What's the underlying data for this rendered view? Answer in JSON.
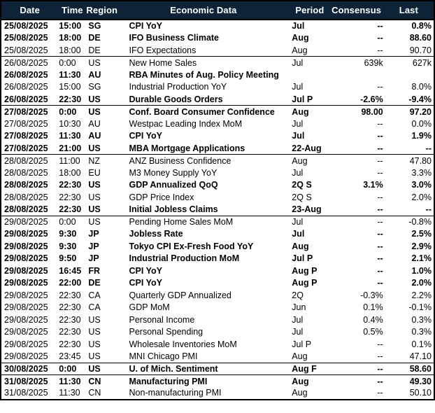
{
  "colors": {
    "header_bg": "#0e2337",
    "header_text": "#ffffff",
    "row_text": "#000000",
    "border": "#000000"
  },
  "header": {
    "columns": {
      "date": "Date",
      "time": "Time",
      "region": "Region",
      "event": "Economic Data",
      "period": "Period",
      "consensus": "Consensus",
      "last": "Last"
    }
  },
  "table": {
    "rows": [
      {
        "date": "25/08/2025",
        "time": "15:00",
        "region": "SG",
        "event": "CPI YoY",
        "period": "Jul",
        "consensus": "--",
        "last": "0.8%",
        "emphasis": true
      },
      {
        "date": "25/08/2025",
        "time": "18:00",
        "region": "DE",
        "event": "IFO Business Climate",
        "period": "Aug",
        "consensus": "--",
        "last": "88.60",
        "emphasis": true
      },
      {
        "date": "25/08/2025",
        "time": "18:00",
        "region": "DE",
        "event": "IFO Expectations",
        "period": "Aug",
        "consensus": "--",
        "last": "90.70",
        "emphasis": false
      },
      {
        "date": "26/08/2025",
        "time": "0:00",
        "region": "US",
        "event": "New Home Sales",
        "period": "Jul",
        "consensus": "639k",
        "last": "627k",
        "emphasis": false
      },
      {
        "date": "26/08/2025",
        "time": "11:30",
        "region": "AU",
        "event": "RBA Minutes of Aug. Policy Meeting",
        "period": "",
        "consensus": "",
        "last": "",
        "emphasis": true
      },
      {
        "date": "26/08/2025",
        "time": "15:00",
        "region": "SG",
        "event": "Industrial Production YoY",
        "period": "Jul",
        "consensus": "--",
        "last": "8.0%",
        "emphasis": false
      },
      {
        "date": "26/08/2025",
        "time": "22:30",
        "region": "US",
        "event": "Durable Goods Orders",
        "period": "Jul P",
        "consensus": "-2.6%",
        "last": "-9.4%",
        "emphasis": true
      },
      {
        "date": "27/08/2025",
        "time": "0:00",
        "region": "US",
        "event": "Conf. Board Consumer Confidence",
        "period": "Aug",
        "consensus": "98.00",
        "last": "97.20",
        "emphasis": true
      },
      {
        "date": "27/08/2025",
        "time": "10:30",
        "region": "AU",
        "event": "Westpac Leading Index MoM",
        "period": "Jul",
        "consensus": "--",
        "last": "0.0%",
        "emphasis": false
      },
      {
        "date": "27/08/2025",
        "time": "11:30",
        "region": "AU",
        "event": "CPI YoY",
        "period": "Jul",
        "consensus": "--",
        "last": "1.9%",
        "emphasis": true
      },
      {
        "date": "27/08/2025",
        "time": "21:00",
        "region": "US",
        "event": "MBA Mortgage Applications",
        "period": "22-Aug",
        "consensus": "--",
        "last": "--",
        "emphasis": true
      },
      {
        "date": "28/08/2025",
        "time": "11:00",
        "region": "NZ",
        "event": "ANZ Business Confidence",
        "period": "Aug",
        "consensus": "--",
        "last": "47.80",
        "emphasis": false
      },
      {
        "date": "28/08/2025",
        "time": "18:00",
        "region": "EU",
        "event": "M3 Money Supply YoY",
        "period": "Jul",
        "consensus": "--",
        "last": "3.3%",
        "emphasis": false
      },
      {
        "date": "28/08/2025",
        "time": "22:30",
        "region": "US",
        "event": "GDP Annualized QoQ",
        "period": "2Q S",
        "consensus": "3.1%",
        "last": "3.0%",
        "emphasis": true
      },
      {
        "date": "28/08/2025",
        "time": "22:30",
        "region": "US",
        "event": "GDP Price Index",
        "period": "2Q S",
        "consensus": "--",
        "last": "2.0%",
        "emphasis": false
      },
      {
        "date": "28/08/2025",
        "time": "22:30",
        "region": "US",
        "event": "Initial Jobless Claims",
        "period": "23-Aug",
        "consensus": "--",
        "last": "--",
        "emphasis": true
      },
      {
        "date": "29/08/2025",
        "time": "0:00",
        "region": "US",
        "event": "Pending Home Sales MoM",
        "period": "Jul",
        "consensus": "--",
        "last": "-0.8%",
        "emphasis": false
      },
      {
        "date": "29/08/2025",
        "time": "9:30",
        "region": "JP",
        "event": "Jobless Rate",
        "period": "Jul",
        "consensus": "--",
        "last": "2.5%",
        "emphasis": true
      },
      {
        "date": "29/08/2025",
        "time": "9:30",
        "region": "JP",
        "event": "Tokyo CPI Ex-Fresh Food YoY",
        "period": "Aug",
        "consensus": "--",
        "last": "2.9%",
        "emphasis": true
      },
      {
        "date": "29/08/2025",
        "time": "9:50",
        "region": "JP",
        "event": "Industrial Production MoM",
        "period": "Jul P",
        "consensus": "--",
        "last": "2.1%",
        "emphasis": true
      },
      {
        "date": "29/08/2025",
        "time": "16:45",
        "region": "FR",
        "event": "CPI YoY",
        "period": "Aug P",
        "consensus": "--",
        "last": "1.0%",
        "emphasis": true
      },
      {
        "date": "29/08/2025",
        "time": "22:00",
        "region": "DE",
        "event": "CPI YoY",
        "period": "Aug P",
        "consensus": "--",
        "last": "2.0%",
        "emphasis": true
      },
      {
        "date": "29/08/2025",
        "time": "22:30",
        "region": "CA",
        "event": "Quarterly GDP Annualized",
        "period": "2Q",
        "consensus": "-0.3%",
        "last": "2.2%",
        "emphasis": false
      },
      {
        "date": "29/08/2025",
        "time": "22:30",
        "region": "CA",
        "event": "GDP MoM",
        "period": "Jun",
        "consensus": "0.1%",
        "last": "-0.1%",
        "emphasis": false
      },
      {
        "date": "29/08/2025",
        "time": "22:30",
        "region": "US",
        "event": "Personal Income",
        "period": "Jul",
        "consensus": "0.4%",
        "last": "0.3%",
        "emphasis": false
      },
      {
        "date": "29/08/2025",
        "time": "22:30",
        "region": "US",
        "event": "Personal Spending",
        "period": "Jul",
        "consensus": "0.5%",
        "last": "0.3%",
        "emphasis": false
      },
      {
        "date": "29/08/2025",
        "time": "22:30",
        "region": "US",
        "event": "Wholesale Inventories MoM",
        "period": "Jul P",
        "consensus": "--",
        "last": "0.1%",
        "emphasis": false
      },
      {
        "date": "29/08/2025",
        "time": "23:45",
        "region": "US",
        "event": "MNI Chicago PMI",
        "period": "Aug",
        "consensus": "--",
        "last": "47.10",
        "emphasis": false
      },
      {
        "date": "30/08/2025",
        "time": "0:00",
        "region": "US",
        "event": "U. of Mich. Sentiment",
        "period": "Aug F",
        "consensus": "--",
        "last": "58.60",
        "emphasis": true
      },
      {
        "date": "31/08/2025",
        "time": "11:30",
        "region": "CN",
        "event": "Manufacturing PMI",
        "period": "Aug",
        "consensus": "--",
        "last": "49.30",
        "emphasis": true
      },
      {
        "date": "31/08/2025",
        "time": "11:30",
        "region": "CN",
        "event": "Non-manufacturing PMI",
        "period": "Aug",
        "consensus": "--",
        "last": "50.10",
        "emphasis": false
      }
    ]
  }
}
